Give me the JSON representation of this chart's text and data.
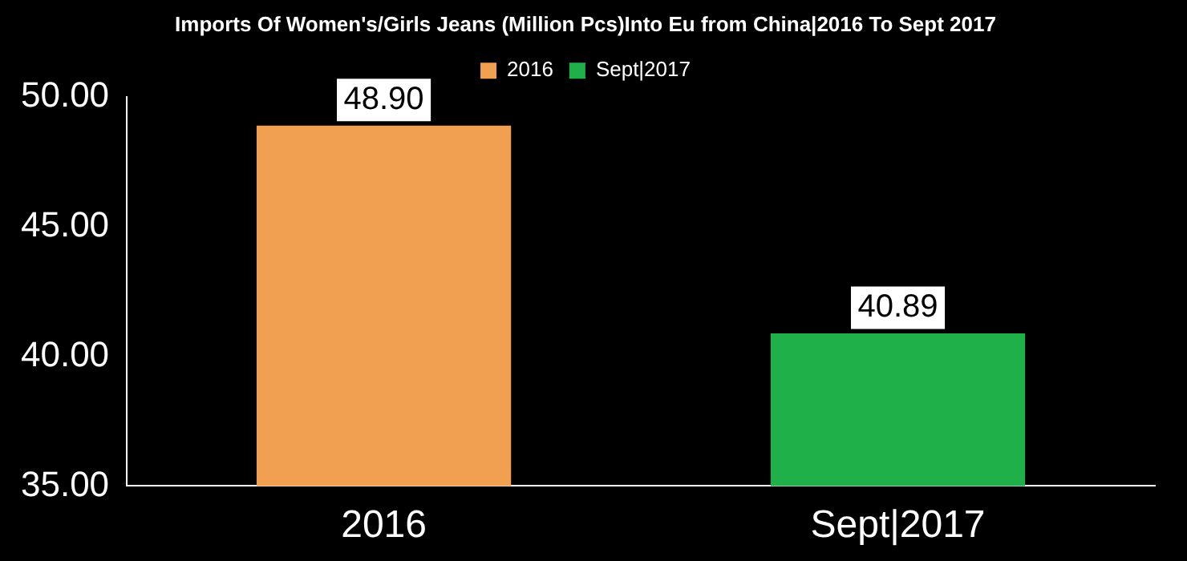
{
  "chart_data": {
    "type": "bar",
    "title": "Imports Of Women's/Girls Jeans (Million Pcs)Into Eu from China|2016 To Sept 2017",
    "categories": [
      "2016",
      "Sept|2017"
    ],
    "series": [
      {
        "name": "2016",
        "color": "#f0a050",
        "values": [
          48.9,
          null
        ],
        "value_labels": [
          "48.90",
          null
        ]
      },
      {
        "name": "Sept|2017",
        "color": "#1fb04a",
        "values": [
          null,
          40.89
        ],
        "value_labels": [
          null,
          "40.89"
        ]
      }
    ],
    "ylim": [
      35,
      50
    ],
    "yticks": [
      {
        "value": 35,
        "label": "35.00"
      },
      {
        "value": 40,
        "label": "40.00"
      },
      {
        "value": 45,
        "label": "45.00"
      },
      {
        "value": 50,
        "label": "50.00"
      }
    ],
    "grid": false,
    "legend": "top"
  }
}
